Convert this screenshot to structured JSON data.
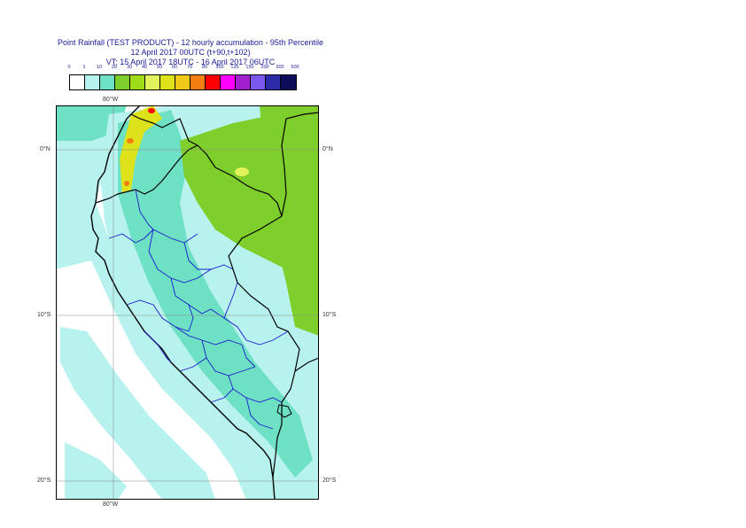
{
  "title": {
    "line1": "Point Rainfall (TEST PRODUCT) - 12 hourly accumulation - 95th Percentile",
    "line2": "12 April 2017 00UTC (t+90,t+102)",
    "line3": "VT: 15 April 2017 18UTC - 16 April 2017 06UTC"
  },
  "legend": {
    "thresholds": [
      "0",
      "1",
      "10",
      "20",
      "30",
      "40",
      "50",
      "60",
      "70",
      "80",
      "100",
      "125",
      "150",
      "200",
      "300",
      "500"
    ],
    "colors": [
      "#ffffff",
      "#b8f2ee",
      "#6ee0c4",
      "#7fcf2c",
      "#9fdb18",
      "#e2f25a",
      "#dde21a",
      "#f0c81a",
      "#f57e12",
      "#ff0000",
      "#ff00ff",
      "#a020d0",
      "#7b58f0",
      "#2c2ca8",
      "#0c0c5a"
    ]
  },
  "map": {
    "labels": {
      "lon_top": "80°W",
      "lon_bottom": "80°W",
      "lat_0_left": "0°N",
      "lat_0_right": "0°N",
      "lat_10_left": "10°S",
      "lat_10_right": "10°S",
      "lat_20_left": "20°S",
      "lat_20_right": "20°S"
    },
    "background_color": "#ffffff",
    "ocean_rain_color": "#b8f2ee",
    "land_rain_color": "#6ee0c4",
    "amazon_rain_color": "#7fcf2c",
    "coast_color": "#000000",
    "border_color": "#1a1acc"
  }
}
